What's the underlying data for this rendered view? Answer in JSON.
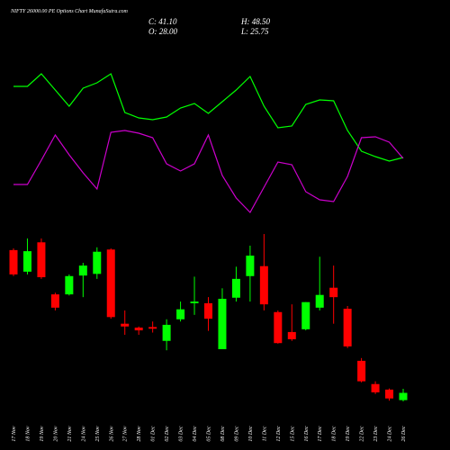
{
  "chart_data": {
    "type": "candlestick",
    "title": "NIFTY 26000.00 PE Options Chart MunafaSutra.com",
    "stats": [
      "C: 41.10",
      "H: 48.50",
      "O: 28.00",
      "L: 25.75"
    ],
    "categories": [
      "17 Nov",
      "18 Nov",
      "19 Nov",
      "20 Nov",
      "21 Nov",
      "24 Nov",
      "25 Nov",
      "26 Nov",
      "27 Nov",
      "28 Nov",
      "01 Dec",
      "02 Dec",
      "03 Dec",
      "04 Dec",
      "05 Dec",
      "08 Dec",
      "09 Dec",
      "10 Dec",
      "11 Dec",
      "12 Dec",
      "15 Dec",
      "16 Dec",
      "17 Dec",
      "18 Dec",
      "19 Dec",
      "22 Dec",
      "23 Dec",
      "24 Dec",
      "26 Dec"
    ],
    "open": [
      299,
      260,
      313,
      219,
      219,
      253,
      256,
      300,
      166,
      159,
      160,
      135,
      174,
      203,
      203,
      120,
      213,
      252,
      270,
      187,
      151,
      156,
      195,
      231,
      193,
      99,
      57,
      47,
      28
    ],
    "high": [
      302,
      320,
      320,
      222,
      255,
      276,
      304,
      302,
      190,
      161,
      170,
      174,
      206,
      251,
      214,
      230,
      269,
      307,
      328,
      190,
      201,
      205,
      287,
      271,
      198,
      104,
      62,
      49,
      48.5
    ],
    "low": [
      252,
      255,
      247,
      190,
      217,
      214,
      247,
      175,
      146,
      146,
      150,
      118,
      170,
      182,
      153,
      120,
      206,
      206,
      190,
      130,
      135,
      154,
      190,
      166,
      122,
      60,
      39,
      27,
      25.75
    ],
    "close": [
      255,
      297,
      250,
      195,
      252,
      271,
      296,
      178,
      161,
      154,
      157,
      164,
      192,
      206,
      175,
      211,
      247,
      289,
      201,
      131,
      138,
      205,
      218,
      214,
      125,
      62,
      42,
      31,
      41.1
    ],
    "ylim": [
      0,
      350
    ],
    "up_color": "#00ff00",
    "down_color": "#ff0000",
    "lines": [
      {
        "color": "#00ff00",
        "values": [
          82,
          82,
          89,
          80,
          71,
          81,
          84,
          89,
          67.5,
          64.5,
          63.5,
          65,
          70,
          72.5,
          67,
          73.5,
          80,
          87.5,
          71,
          59,
          60,
          72,
          74.5,
          74,
          57.5,
          46,
          43,
          40.5,
          42.5
        ]
      },
      {
        "color": "#cc00cc",
        "values": [
          27.5,
          27.5,
          41,
          55,
          44,
          34,
          25,
          56.5,
          57.5,
          56,
          53.5,
          39,
          35,
          39,
          55,
          32.5,
          20,
          12,
          26,
          40,
          38.5,
          23.5,
          19,
          18,
          32,
          53.5,
          54,
          51,
          42
        ]
      }
    ],
    "lines_ylim": [
      0,
      100
    ]
  }
}
